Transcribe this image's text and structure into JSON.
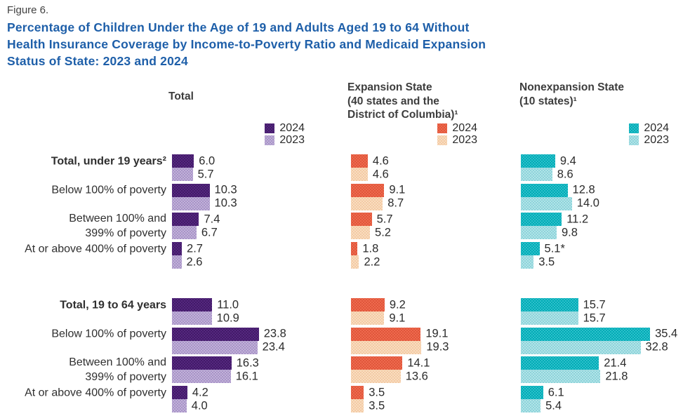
{
  "figure_label": "Figure 6.",
  "title_lines": [
    "Percentage of Children Under the Age of 19 and Adults Aged 19 to 64 Without",
    "Health Insurance Coverage by Income-to-Poverty Ratio and Medicaid Expansion",
    "Status of State: 2023 and 2024"
  ],
  "colors": {
    "title": "#1e5fa9",
    "header_text": "#3d3d3d",
    "body_text": "#2b2b2b"
  },
  "chart_data": {
    "type": "bar",
    "orientation": "horizontal",
    "unit": "percent_without_coverage",
    "years": [
      "2024",
      "2023"
    ],
    "panels": [
      {
        "id": "total",
        "header": "Total",
        "colors": {
          "y2024": "#55277f",
          "y2024_dot": "#3b1760",
          "y2023": "#a893c8",
          "y2023_dot": "#c9bcdd"
        }
      },
      {
        "id": "expansion",
        "header": "Expansion State\n(40 states and the\nDistrict of Columbia)¹",
        "colors": {
          "y2024": "#ee6a4e",
          "y2024_dot": "#dc4f35",
          "y2023": "#f3caa4",
          "y2023_dot": "#fbe3c9"
        }
      },
      {
        "id": "nonexpansion",
        "header": "Nonexpansion State\n(10 states)¹",
        "colors": {
          "y2024": "#00adb4",
          "y2024_dot": "#3cc4d4",
          "y2023": "#8ed3da",
          "y2023_dot": "#bde9ec"
        }
      }
    ],
    "groups": [
      {
        "rows": [
          {
            "category": "Total, under 19 years²",
            "bold": true,
            "cells": [
              {
                "panel": "total",
                "values": [
                  6.0,
                  5.7
                ],
                "labels": [
                  "6.0",
                  "5.7"
                ]
              },
              {
                "panel": "expansion",
                "values": [
                  4.6,
                  4.6
                ],
                "labels": [
                  "4.6",
                  "4.6"
                ]
              },
              {
                "panel": "nonexpansion",
                "values": [
                  9.4,
                  8.6
                ],
                "labels": [
                  "9.4",
                  "8.6"
                ]
              }
            ]
          },
          {
            "category": "Below 100% of poverty",
            "bold": false,
            "cells": [
              {
                "panel": "total",
                "values": [
                  10.3,
                  10.3
                ],
                "labels": [
                  "10.3",
                  "10.3"
                ]
              },
              {
                "panel": "expansion",
                "values": [
                  9.1,
                  8.7
                ],
                "labels": [
                  "9.1",
                  "8.7"
                ]
              },
              {
                "panel": "nonexpansion",
                "values": [
                  12.8,
                  14.0
                ],
                "labels": [
                  "12.8",
                  "14.0"
                ]
              }
            ]
          },
          {
            "category": "Between 100% and\n399% of poverty",
            "bold": false,
            "cells": [
              {
                "panel": "total",
                "values": [
                  7.4,
                  6.7
                ],
                "labels": [
                  "7.4",
                  "6.7"
                ]
              },
              {
                "panel": "expansion",
                "values": [
                  5.7,
                  5.2
                ],
                "labels": [
                  "5.7",
                  "5.2"
                ]
              },
              {
                "panel": "nonexpansion",
                "values": [
                  11.2,
                  9.8
                ],
                "labels": [
                  "11.2",
                  "9.8"
                ]
              }
            ]
          },
          {
            "category": "At or above 400% of poverty",
            "bold": false,
            "cells": [
              {
                "panel": "total",
                "values": [
                  2.7,
                  2.6
                ],
                "labels": [
                  "2.7",
                  "2.6"
                ]
              },
              {
                "panel": "expansion",
                "values": [
                  1.8,
                  2.2
                ],
                "labels": [
                  "1.8",
                  "2.2"
                ]
              },
              {
                "panel": "nonexpansion",
                "values": [
                  5.1,
                  3.5
                ],
                "labels": [
                  "5.1*",
                  "3.5"
                ]
              }
            ]
          }
        ]
      },
      {
        "rows": [
          {
            "category": "Total, 19 to 64 years",
            "bold": true,
            "cells": [
              {
                "panel": "total",
                "values": [
                  11.0,
                  10.9
                ],
                "labels": [
                  "11.0",
                  "10.9"
                ]
              },
              {
                "panel": "expansion",
                "values": [
                  9.2,
                  9.1
                ],
                "labels": [
                  "9.2",
                  "9.1"
                ]
              },
              {
                "panel": "nonexpansion",
                "values": [
                  15.7,
                  15.7
                ],
                "labels": [
                  "15.7",
                  "15.7"
                ]
              }
            ]
          },
          {
            "category": "Below 100% of poverty",
            "bold": false,
            "cells": [
              {
                "panel": "total",
                "values": [
                  23.8,
                  23.4
                ],
                "labels": [
                  "23.8",
                  "23.4"
                ]
              },
              {
                "panel": "expansion",
                "values": [
                  19.1,
                  19.3
                ],
                "labels": [
                  "19.1",
                  "19.3"
                ]
              },
              {
                "panel": "nonexpansion",
                "values": [
                  35.4,
                  32.8
                ],
                "labels": [
                  "35.4",
                  "32.8"
                ]
              }
            ]
          },
          {
            "category": "Between 100% and\n399% of poverty",
            "bold": false,
            "cells": [
              {
                "panel": "total",
                "values": [
                  16.3,
                  16.1
                ],
                "labels": [
                  "16.3",
                  "16.1"
                ]
              },
              {
                "panel": "expansion",
                "values": [
                  14.1,
                  13.6
                ],
                "labels": [
                  "14.1",
                  "13.6"
                ]
              },
              {
                "panel": "nonexpansion",
                "values": [
                  21.4,
                  21.8
                ],
                "labels": [
                  "21.4",
                  "21.8"
                ]
              }
            ]
          },
          {
            "category": "At or above 400% of poverty",
            "bold": false,
            "cells": [
              {
                "panel": "total",
                "values": [
                  4.2,
                  4.0
                ],
                "labels": [
                  "4.2",
                  "4.0"
                ]
              },
              {
                "panel": "expansion",
                "values": [
                  3.5,
                  3.5
                ],
                "labels": [
                  "3.5",
                  "3.5"
                ]
              },
              {
                "panel": "nonexpansion",
                "values": [
                  6.1,
                  5.4
                ],
                "labels": [
                  "6.1",
                  "5.4"
                ]
              }
            ]
          }
        ]
      }
    ]
  }
}
